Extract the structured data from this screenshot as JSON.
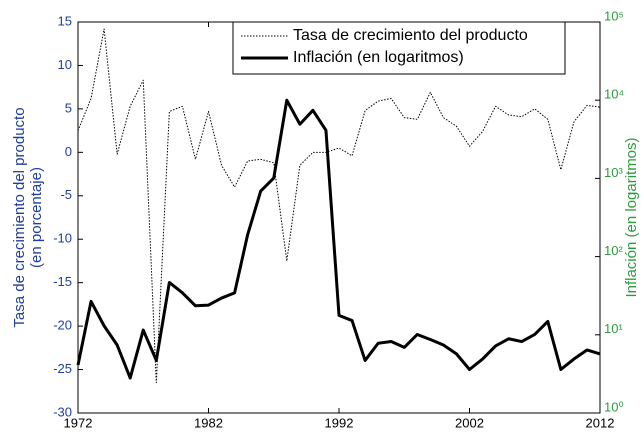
{
  "chart_data": {
    "type": "line",
    "ylabel": [
      "Tasa de crecimiento del producto",
      "(en porcentaje)"
    ],
    "y2label": "Inflación (en logaritmos)",
    "x": [
      1972,
      1973,
      1974,
      1975,
      1976,
      1977,
      1978,
      1979,
      1980,
      1981,
      1982,
      1983,
      1984,
      1985,
      1986,
      1987,
      1988,
      1989,
      1990,
      1991,
      1992,
      1993,
      1994,
      1995,
      1996,
      1997,
      1998,
      1999,
      2000,
      2001,
      2002,
      2003,
      2004,
      2005,
      2006,
      2007,
      2008,
      2009,
      2010,
      2011,
      2012
    ],
    "series": [
      {
        "name": "Tasa de crecimiento del producto",
        "color": "#000000",
        "style": "dotted",
        "axis": "y",
        "values": [
          2.5,
          6.2,
          14.2,
          -0.2,
          5.3,
          8.3,
          -26.5,
          4.7,
          5.3,
          -0.8,
          4.7,
          -1.5,
          -4,
          -1,
          -0.8,
          -1.2,
          -12.5,
          -1.5,
          0,
          0,
          0.5,
          -0.4,
          4.8,
          5.9,
          6.2,
          4,
          3.8,
          6.9,
          4,
          3,
          0.7,
          2.4,
          5.3,
          4.3,
          4.1,
          5,
          3.8,
          -2,
          3.5,
          5.4,
          5.2
        ]
      },
      {
        "name": "Inflación (en logaritmos)",
        "color": "#000000",
        "style": "solid",
        "axis": "y2",
        "values": [
          4.1,
          26.7,
          13,
          7.4,
          2.8,
          11.5,
          4.7,
          46.7,
          34.4,
          23.5,
          24,
          29.5,
          34.4,
          191,
          688,
          1009,
          10000,
          4930,
          7430,
          4120,
          17.7,
          15.2,
          4.7,
          7.8,
          8.2,
          6.9,
          10.1,
          8.7,
          7.4,
          5.7,
          3.6,
          4.9,
          7.2,
          8.9,
          8.2,
          10.1,
          14.8,
          3.6,
          4.9,
          6.4,
          5.7
        ]
      }
    ],
    "xlim": [
      1972,
      2012
    ],
    "xticks": [
      1972,
      1982,
      1992,
      2002,
      2012
    ],
    "ylim": [
      -30,
      15
    ],
    "yticks": [
      -30,
      -25,
      -20,
      -15,
      -10,
      -5,
      0,
      5,
      10,
      15
    ],
    "y2lim": [
      1,
      100000
    ],
    "y2log": true,
    "y2ticks": [
      {
        "value": 1,
        "label": "10⁰"
      },
      {
        "value": 10,
        "label": "10¹"
      },
      {
        "value": 100,
        "label": "10²"
      },
      {
        "value": 1000,
        "label": "10³"
      },
      {
        "value": 10000,
        "label": "10⁴"
      },
      {
        "value": 100000,
        "label": "10⁵"
      }
    ],
    "y_color": "#1f3f9f",
    "y2_color": "#2e9a3e",
    "legend": "upper right"
  }
}
